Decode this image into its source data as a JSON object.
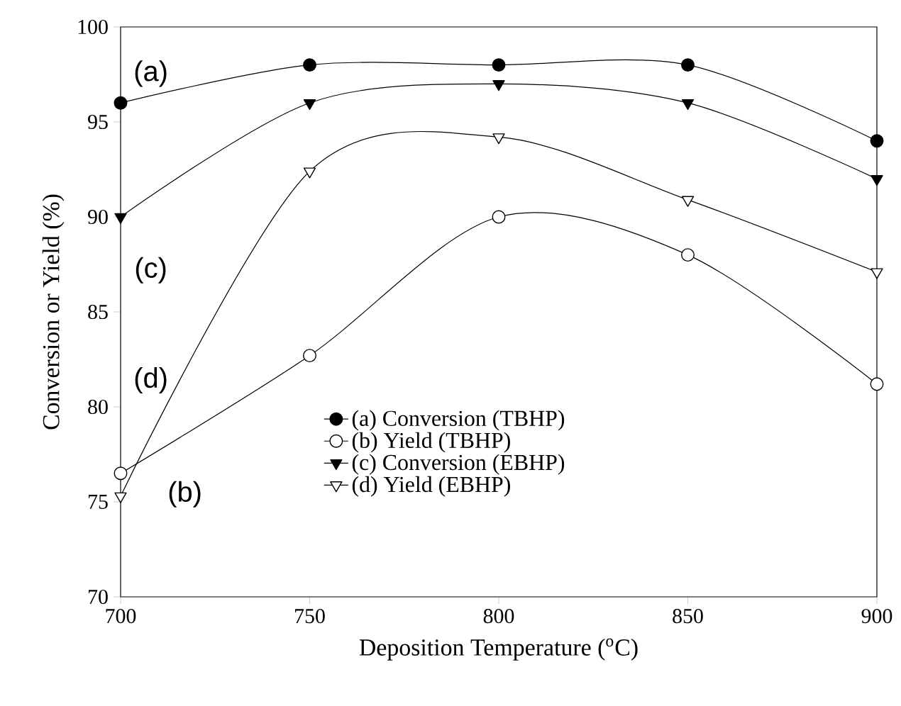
{
  "chart_data": {
    "type": "line",
    "xlabel": "Deposition Temperature ($^{o}$C)",
    "ylabel": "Conversion or Yield (%)",
    "x": [
      700,
      750,
      800,
      850,
      900
    ],
    "series": [
      {
        "name": "(a) Conversion (TBHP)",
        "color": "#000000",
        "marker": "circle",
        "values": [
          96,
          98,
          98,
          98,
          94
        ]
      },
      {
        "name": "(b) Yield (TBHP)",
        "color": "#000000",
        "marker": "circle-open",
        "values": [
          76.5,
          82.7,
          90,
          88,
          81.2
        ]
      },
      {
        "name": "(c) Conversion (EBHP)",
        "color": "#000000",
        "marker": "triangle",
        "values": [
          90,
          96,
          97,
          96,
          92
        ]
      },
      {
        "name": "(d) Yield (EBHP)",
        "color": "#000000",
        "marker": "triangle-open",
        "values": [
          75.3,
          92.4,
          94.2,
          90.9,
          87.1
        ]
      }
    ],
    "annotations": [
      "(a)",
      "(c)",
      "(d)",
      "(b)"
    ],
    "xlim": [
      700,
      900
    ],
    "xticks": [
      700,
      750,
      800,
      850,
      900
    ],
    "ylim": [
      70,
      100
    ],
    "yticks": [
      70,
      75,
      80,
      85,
      90,
      95,
      100
    ],
    "grid": false,
    "legend": "bottom",
    "line_style": "solid"
  }
}
